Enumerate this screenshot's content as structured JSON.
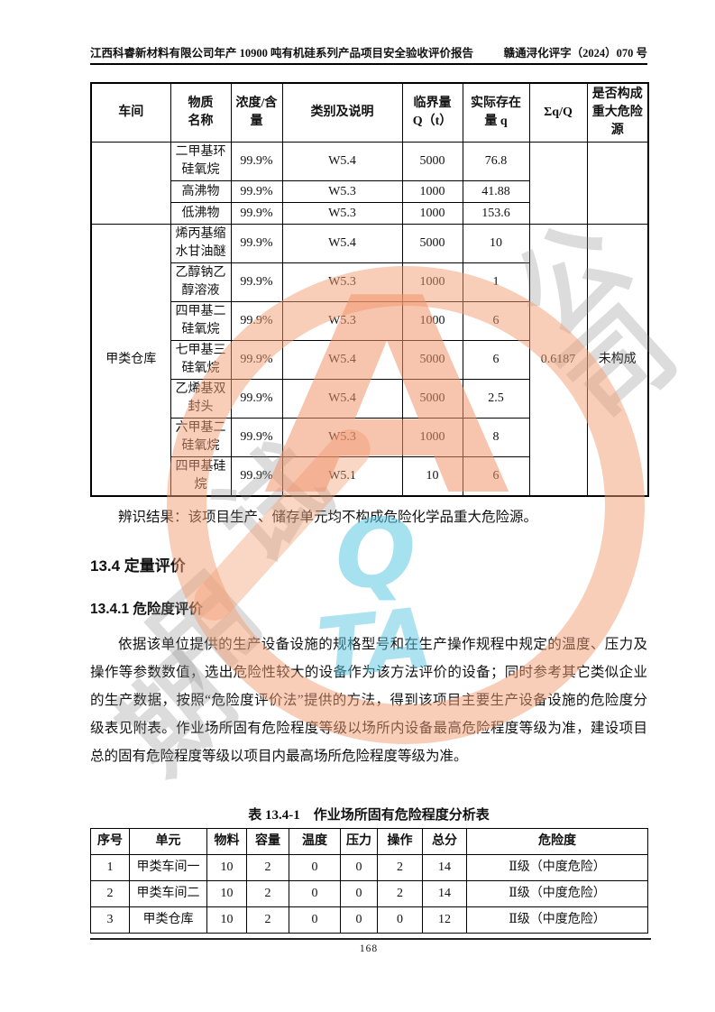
{
  "header": {
    "left": "江西科睿新材料有限公司年产 10900 吨有机硅系列产品项目安全验收评价报告",
    "right": "赣通浔化评字（2024）070 号"
  },
  "hazard_table": {
    "columns": [
      "车间",
      "物质\n名称",
      "浓度/含\n量",
      "类别及说明",
      "临界量\nQ（t）",
      "实际存在\n量 q",
      "Σq/Q",
      "是否构成\n重大危险\n源"
    ],
    "groups": [
      {
        "workshop": "",
        "sum_ratio": "",
        "is_major": "",
        "rows": [
          {
            "name": "二甲基环硅氧烷",
            "conc": "99.9%",
            "class": "W5.4",
            "q_limit": "5000",
            "q_actual": "76.8"
          },
          {
            "name": "高沸物",
            "conc": "99.9%",
            "class": "W5.3",
            "q_limit": "1000",
            "q_actual": "41.88"
          },
          {
            "name": "低沸物",
            "conc": "99.9%",
            "class": "W5.3",
            "q_limit": "1000",
            "q_actual": "153.6"
          }
        ]
      },
      {
        "workshop": "甲类仓库",
        "sum_ratio": "0.6187",
        "is_major": "未构成",
        "rows": [
          {
            "name": "烯丙基缩水甘油醚",
            "conc": "99.9%",
            "class": "W5.4",
            "q_limit": "5000",
            "q_actual": "10"
          },
          {
            "name": "乙醇钠乙醇溶液",
            "conc": "99.9%",
            "class": "W5.3",
            "q_limit": "1000",
            "q_actual": "1"
          },
          {
            "name": "四甲基二硅氧烷",
            "conc": "99.9%",
            "class": "W5.3",
            "q_limit": "1000",
            "q_actual": "6"
          },
          {
            "name": "七甲基三硅氧烷",
            "conc": "99.9%",
            "class": "W5.4",
            "q_limit": "5000",
            "q_actual": "6"
          },
          {
            "name": "乙烯基双封头",
            "conc": "99.9%",
            "class": "W5.4",
            "q_limit": "5000",
            "q_actual": "2.5"
          },
          {
            "name": "六甲基二硅氧烷",
            "conc": "99.9%",
            "class": "W5.3",
            "q_limit": "1000",
            "q_actual": "8"
          },
          {
            "name": "四甲基硅烷",
            "conc": "99.9%",
            "class": "W5.1",
            "q_limit": "10",
            "q_actual": "6"
          }
        ]
      }
    ]
  },
  "identification_result": "辨识结果：该项目生产、储存单元均不构成危险化学品重大危险源。",
  "section_title": "13.4 定量评价",
  "subsection_title": "13.4.1 危险度评价",
  "paragraph": "依据该单位提供的生产设备设施的规格型号和在生产操作规程中规定的温度、压力及操作等参数数值，选出危险性较大的设备作为该方法评价的设备；同时参考其它类似企业的生产数据，按照“危险度评价法”提供的方法，得到该项目主要生产设备设施的危险度分级表见附表。作业场所固有危险程度等级以场所内设备最高危险程度等级为准，建设项目总的固有危险程度等级以项目内最高场所危险程度等级为准。",
  "analysis_table": {
    "title": "表 13.4-1　作业场所固有危险程度分析表",
    "columns": [
      "序号",
      "单元",
      "物料",
      "容量",
      "温度",
      "压力",
      "操作",
      "总分",
      "危险度"
    ],
    "rows": [
      [
        "1",
        "甲类车间一",
        "10",
        "2",
        "0",
        "0",
        "2",
        "14",
        "Ⅱ级（中度危险）"
      ],
      [
        "2",
        "甲类车间二",
        "10",
        "2",
        "0",
        "0",
        "2",
        "14",
        "Ⅱ级（中度危险）"
      ],
      [
        "3",
        "甲类仓库",
        "10",
        "2",
        "0",
        "0",
        "0",
        "12",
        "Ⅱ级（中度危险）"
      ]
    ]
  },
  "footer": {
    "page_number": "168"
  },
  "watermark": {
    "stamp_letter": "A",
    "cyan_text_1": "Q",
    "cyan_text_2": "TA",
    "gray_chars": [
      "公",
      "司",
      "试",
      "用",
      "期"
    ],
    "colors": {
      "stamp": "#EE9870",
      "cyan": "#5CC8E1",
      "gray": "#8A8A8A"
    }
  }
}
